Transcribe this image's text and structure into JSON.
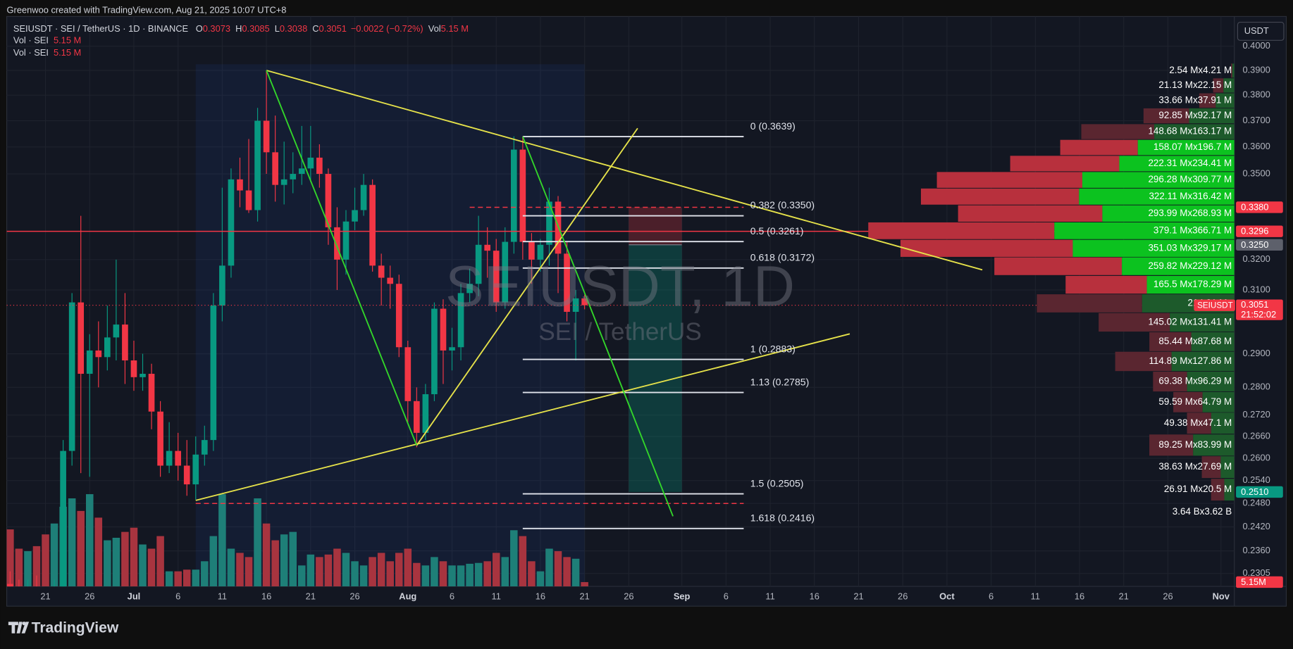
{
  "chart_data": {
    "type": "candlestick",
    "header": "Greenwoo created with TradingView.com, Aug 21, 2025 10:07 UTC+8",
    "legend": {
      "symbol": "SEIUSDT · SEI / TetherUS · 1D · BINANCE",
      "ohlc": [
        {
          "key": "O",
          "value": 0.3073
        },
        {
          "key": "H",
          "value": 0.3085
        },
        {
          "key": "L",
          "value": 0.3038
        },
        {
          "key": "C",
          "value": 0.3051
        }
      ],
      "change": "−0.0022 (−0.72%)",
      "vol_key": "Vol",
      "vol": "5.15 M",
      "indicators": [
        {
          "name": "Vol · SEI",
          "value": "5.15 M"
        },
        {
          "name": "Vol · SEI",
          "value": "5.15 M"
        }
      ]
    },
    "watermark": {
      "title": "SEIUSDT, 1D",
      "subtitle": "SEI / TetherUS"
    },
    "currency": "USDT",
    "footer": "TradingView",
    "log_scale": true,
    "grid": true,
    "colors": {
      "up": "#089981",
      "down": "#f23645",
      "up_volume": "#1e7f78",
      "down_volume": "#a8343f"
    },
    "ylim": [
      0.2274,
      0.4119
    ],
    "yticks": [
      {
        "value": 0.4,
        "label": "0.4000"
      },
      {
        "value": 0.39,
        "label": "0.3900"
      },
      {
        "value": 0.38,
        "label": "0.3800"
      },
      {
        "value": 0.37,
        "label": "0.3700"
      },
      {
        "value": 0.36,
        "label": "0.3600"
      },
      {
        "value": 0.35,
        "label": "0.3500"
      },
      {
        "value": 0.32,
        "label": "0.3200"
      },
      {
        "value": 0.31,
        "label": "0.3100"
      },
      {
        "value": 0.29,
        "label": "0.2900"
      },
      {
        "value": 0.28,
        "label": "0.2800"
      },
      {
        "value": 0.272,
        "label": "0.2720"
      },
      {
        "value": 0.266,
        "label": "0.2660"
      },
      {
        "value": 0.26,
        "label": "0.2600"
      },
      {
        "value": 0.254,
        "label": "0.2540"
      },
      {
        "value": 0.248,
        "label": "0.2480"
      },
      {
        "value": 0.242,
        "label": "0.2420"
      },
      {
        "value": 0.236,
        "label": "0.2360"
      },
      {
        "value": 0.2305,
        "label": "0.2305"
      }
    ],
    "xticks": [
      {
        "value": "Jun 21",
        "label": "21"
      },
      {
        "value": "Jun 26",
        "label": "26"
      },
      {
        "value": "Jul 1",
        "label": "Jul"
      },
      {
        "value": "Jul 6",
        "label": "6"
      },
      {
        "value": "Jul 11",
        "label": "11"
      },
      {
        "value": "Jul 16",
        "label": "16"
      },
      {
        "value": "Jul 21",
        "label": "21"
      },
      {
        "value": "Jul 26",
        "label": "26"
      },
      {
        "value": "Aug 1",
        "label": "Aug"
      },
      {
        "value": "Aug 6",
        "label": "6"
      },
      {
        "value": "Aug 11",
        "label": "11"
      },
      {
        "value": "Aug 16",
        "label": "16"
      },
      {
        "value": "Aug 21",
        "label": "21"
      },
      {
        "value": "Aug 26",
        "label": "26"
      },
      {
        "value": "Sep 1",
        "label": "Sep"
      },
      {
        "value": "Sep 6",
        "label": "6"
      },
      {
        "value": "Sep 11",
        "label": "11"
      },
      {
        "value": "Sep 16",
        "label": "16"
      },
      {
        "value": "Sep 21",
        "label": "21"
      },
      {
        "value": "Sep 26",
        "label": "26"
      },
      {
        "value": "Oct 1",
        "label": "Oct"
      },
      {
        "value": "Oct 6",
        "label": "6"
      },
      {
        "value": "Oct 11",
        "label": "11"
      },
      {
        "value": "Oct 16",
        "label": "16"
      },
      {
        "value": "Oct 21",
        "label": "21"
      },
      {
        "value": "Oct 26",
        "label": "26"
      },
      {
        "value": "Nov 1",
        "label": "Nov"
      }
    ],
    "x": [
      "Jun 17",
      "Jun 18",
      "Jun 19",
      "Jun 20",
      "Jun 21",
      "Jun 22",
      "Jun 23",
      "Jun 24",
      "Jun 25",
      "Jun 26",
      "Jun 27",
      "Jun 28",
      "Jun 29",
      "Jun 30",
      "Jul 1",
      "Jul 2",
      "Jul 3",
      "Jul 4",
      "Jul 5",
      "Jul 6",
      "Jul 7",
      "Jul 8",
      "Jul 9",
      "Jul 10",
      "Jul 11",
      "Jul 12",
      "Jul 13",
      "Jul 14",
      "Jul 15",
      "Jul 16",
      "Jul 17",
      "Jul 18",
      "Jul 19",
      "Jul 20",
      "Jul 21",
      "Jul 22",
      "Jul 23",
      "Jul 24",
      "Jul 25",
      "Jul 26",
      "Jul 27",
      "Jul 28",
      "Jul 29",
      "Jul 30",
      "Jul 31",
      "Aug 1",
      "Aug 2",
      "Aug 3",
      "Aug 4",
      "Aug 5",
      "Aug 6",
      "Aug 7",
      "Aug 8",
      "Aug 9",
      "Aug 10",
      "Aug 11",
      "Aug 12",
      "Aug 13",
      "Aug 14",
      "Aug 15",
      "Aug 16",
      "Aug 17",
      "Aug 18",
      "Aug 19",
      "Aug 20",
      "Aug 21"
    ],
    "open": [
      0.228,
      0.226,
      0.224,
      0.227,
      0.224,
      0.222,
      0.226,
      0.262,
      0.306,
      0.284,
      0.291,
      0.289,
      0.295,
      0.299,
      0.288,
      0.283,
      0.284,
      0.273,
      0.258,
      0.262,
      0.258,
      0.253,
      0.261,
      0.265,
      0.305,
      0.318,
      0.348,
      0.344,
      0.337,
      0.37,
      0.358,
      0.346,
      0.348,
      0.35,
      0.352,
      0.356,
      0.35,
      0.331,
      0.32,
      0.333,
      0.337,
      0.346,
      0.318,
      0.314,
      0.312,
      0.292,
      0.276,
      0.267,
      0.278,
      0.304,
      0.291,
      0.292,
      0.309,
      0.312,
      0.325,
      0.323,
      0.306,
      0.326,
      0.359,
      0.326,
      0.32,
      0.325,
      0.34,
      0.322,
      0.303,
      0.3073
    ],
    "high": [
      0.231,
      0.229,
      0.229,
      0.23,
      0.227,
      0.229,
      0.265,
      0.309,
      0.335,
      0.296,
      0.3,
      0.305,
      0.32,
      0.309,
      0.294,
      0.29,
      0.287,
      0.276,
      0.27,
      0.267,
      0.265,
      0.266,
      0.269,
      0.309,
      0.345,
      0.352,
      0.356,
      0.363,
      0.375,
      0.39,
      0.372,
      0.362,
      0.358,
      0.368,
      0.368,
      0.361,
      0.352,
      0.338,
      0.337,
      0.345,
      0.35,
      0.348,
      0.322,
      0.318,
      0.315,
      0.294,
      0.28,
      0.281,
      0.306,
      0.307,
      0.298,
      0.312,
      0.317,
      0.335,
      0.331,
      0.327,
      0.331,
      0.364,
      0.364,
      0.329,
      0.327,
      0.345,
      0.342,
      0.326,
      0.31,
      0.3085
    ],
    "low": [
      0.224,
      0.221,
      0.222,
      0.221,
      0.219,
      0.218,
      0.224,
      0.258,
      0.256,
      0.255,
      0.28,
      0.285,
      0.288,
      0.281,
      0.279,
      0.279,
      0.268,
      0.255,
      0.256,
      0.254,
      0.25,
      0.249,
      0.258,
      0.262,
      0.3,
      0.314,
      0.338,
      0.336,
      0.333,
      0.35,
      0.34,
      0.339,
      0.343,
      0.346,
      0.347,
      0.345,
      0.325,
      0.31,
      0.315,
      0.33,
      0.335,
      0.316,
      0.305,
      0.304,
      0.289,
      0.27,
      0.263,
      0.265,
      0.276,
      0.281,
      0.285,
      0.288,
      0.306,
      0.308,
      0.314,
      0.303,
      0.304,
      0.322,
      0.32,
      0.312,
      0.316,
      0.318,
      0.309,
      0.3,
      0.288,
      0.3038
    ],
    "close": [
      0.226,
      0.224,
      0.227,
      0.224,
      0.222,
      0.226,
      0.262,
      0.306,
      0.284,
      0.291,
      0.289,
      0.295,
      0.299,
      0.288,
      0.283,
      0.284,
      0.273,
      0.258,
      0.262,
      0.258,
      0.253,
      0.261,
      0.265,
      0.305,
      0.318,
      0.348,
      0.344,
      0.337,
      0.37,
      0.358,
      0.346,
      0.348,
      0.35,
      0.352,
      0.356,
      0.35,
      0.331,
      0.32,
      0.333,
      0.337,
      0.346,
      0.318,
      0.314,
      0.312,
      0.292,
      0.276,
      0.267,
      0.278,
      0.304,
      0.291,
      0.292,
      0.309,
      0.312,
      0.325,
      0.323,
      0.306,
      0.326,
      0.359,
      0.326,
      0.32,
      0.325,
      0.34,
      0.322,
      0.303,
      0.3073,
      0.3051
    ],
    "volume": [
      68,
      45,
      42,
      48,
      62,
      75,
      95,
      105,
      90,
      110,
      82,
      55,
      58,
      65,
      70,
      50,
      45,
      60,
      18,
      18,
      20,
      20,
      30,
      60,
      110,
      45,
      40,
      35,
      105,
      75,
      55,
      62,
      65,
      25,
      38,
      35,
      38,
      45,
      40,
      30,
      25,
      35,
      40,
      30,
      40,
      45,
      28,
      25,
      35,
      30,
      25,
      25,
      27,
      28,
      30,
      40,
      35,
      67,
      60,
      30,
      18,
      45,
      42,
      35,
      33,
      5.15
    ],
    "volume_label": "5.15M",
    "axis_labels": [
      {
        "value": 0.338,
        "label": "0.3380",
        "color": "#f23645"
      },
      {
        "value": 0.3296,
        "label": "0.3296",
        "color": "#f23645"
      },
      {
        "value": 0.325,
        "label": "0.3250",
        "color": "#5d606b"
      },
      {
        "value": 0.251,
        "label": "0.2510",
        "color": "#089981"
      }
    ],
    "last_price": {
      "value": 0.3051,
      "label": "0.3051",
      "symbol": "SEIUSDT",
      "countdown": "21:52:02",
      "color": "#f23645"
    },
    "date_range": {
      "from": "Jul 8",
      "to": "Aug 21",
      "top": 0.3925
    },
    "hlines": [
      {
        "price": 0.3296,
        "color": "#f23645",
        "dash": false
      },
      {
        "price": 0.338,
        "from": "Aug 8",
        "to": "Sep 8",
        "color": "#f23645",
        "dash": true
      },
      {
        "price": 0.248,
        "from": "Jul 8",
        "to": "Sep 8",
        "color": "#f23645",
        "dash": true
      }
    ],
    "position": {
      "from": "Aug 26",
      "to": "Sep 1",
      "entry": 0.325,
      "stop": 0.338,
      "target": 0.251
    },
    "fib": {
      "from": "Aug 14",
      "to": "Sep 8",
      "color": "#e0e3eb",
      "levels": [
        {
          "ratio": 0,
          "price": 0.3639,
          "label": "0 (0.3639)"
        },
        {
          "ratio": 0.382,
          "price": 0.335,
          "label": "0.382 (0.3350)"
        },
        {
          "ratio": 0.5,
          "price": 0.3261,
          "label": "0.5 (0.3261)"
        },
        {
          "ratio": 0.618,
          "price": 0.3172,
          "label": "0.618 (0.3172)"
        },
        {
          "ratio": 1,
          "price": 0.2883,
          "label": "1 (0.2883)"
        },
        {
          "ratio": 1.13,
          "price": 0.2785,
          "label": "1.13 (0.2785)"
        },
        {
          "ratio": 1.5,
          "price": 0.2505,
          "label": "1.5 (0.2505)"
        },
        {
          "ratio": 1.618,
          "price": 0.2416,
          "label": "1.618 (0.2416)"
        }
      ]
    },
    "trendlines": [
      {
        "color": "#e6e24a",
        "points": [
          {
            "date": "Jul 16",
            "price": 0.39
          },
          {
            "date": "Oct 5",
            "price": 0.3166
          }
        ]
      },
      {
        "color": "#e6e24a",
        "points": [
          {
            "date": "Jul 8",
            "price": 0.2488
          },
          {
            "date": "Sep 20",
            "price": 0.2961
          }
        ]
      },
      {
        "color": "#e6e24a",
        "points": [
          {
            "date": "Aug 2",
            "price": 0.2635
          },
          {
            "date": "Aug 27",
            "price": 0.3671
          }
        ]
      },
      {
        "color": "#33d62a",
        "points": [
          {
            "date": "Jul 16",
            "price": 0.39
          },
          {
            "date": "Aug 2",
            "price": 0.2635
          }
        ]
      },
      {
        "color": "#33d62a",
        "points": [
          {
            "date": "Aug 14",
            "price": 0.3639
          },
          {
            "date": "Aug 31",
            "price": 0.2447
          }
        ]
      }
    ],
    "profile": {
      "colors": {
        "sell": "#b8303d",
        "buy": "#0cc21f",
        "sell_dim": "#5a2630",
        "buy_dim": "#1d5a2b"
      },
      "value_area": [
        0.3117,
        0.3598
      ],
      "rows": [
        {
          "price": 0.3899,
          "sell": 2.54,
          "buy": 4.21,
          "label": "2.54 Mx4.21 M"
        },
        {
          "price": 0.3839,
          "sell": 21.13,
          "buy": 22.15,
          "label": "21.13 Mx22.15 M"
        },
        {
          "price": 0.3779,
          "sell": 33.66,
          "buy": 37.91,
          "label": "33.66 Mx37.91 M"
        },
        {
          "price": 0.3719,
          "sell": 92.85,
          "buy": 92.17,
          "label": "92.85 Mx92.17 M"
        },
        {
          "price": 0.3658,
          "sell": 148.68,
          "buy": 163.17,
          "label": "148.68 Mx163.17 M"
        },
        {
          "price": 0.3598,
          "sell": 158.07,
          "buy": 196.7,
          "label": "158.07 Mx196.7 M"
        },
        {
          "price": 0.3538,
          "sell": 222.31,
          "buy": 234.41,
          "label": "222.31 Mx234.41 M"
        },
        {
          "price": 0.3478,
          "sell": 296.28,
          "buy": 309.77,
          "label": "296.28 Mx309.77 M"
        },
        {
          "price": 0.3418,
          "sell": 322.11,
          "buy": 316.42,
          "label": "322.11 Mx316.42 M"
        },
        {
          "price": 0.3358,
          "sell": 293.99,
          "buy": 268.93,
          "label": "293.99 Mx268.93 M"
        },
        {
          "price": 0.3298,
          "sell": 379.1,
          "buy": 366.71,
          "label": "379.1 Mx366.71 M"
        },
        {
          "price": 0.3238,
          "sell": 351.03,
          "buy": 329.17,
          "label": "351.03 Mx329.17 M"
        },
        {
          "price": 0.3178,
          "sell": 259.82,
          "buy": 229.12,
          "label": "259.82 Mx229.12 M"
        },
        {
          "price": 0.3117,
          "sell": 165.5,
          "buy": 178.29,
          "label": "165.5 Mx178.29 M"
        },
        {
          "price": 0.3057,
          "sell": 214.31,
          "buy": 188,
          "label": "214.31 Mx"
        },
        {
          "price": 0.2997,
          "sell": 145.02,
          "buy": 131.41,
          "label": "145.02 Mx131.41 M"
        },
        {
          "price": 0.2937,
          "sell": 85.44,
          "buy": 87.68,
          "label": "85.44 Mx87.68 M"
        },
        {
          "price": 0.2877,
          "sell": 114.89,
          "buy": 127.86,
          "label": "114.89 Mx127.86 M"
        },
        {
          "price": 0.2817,
          "sell": 69.38,
          "buy": 96.29,
          "label": "69.38 Mx96.29 M"
        },
        {
          "price": 0.2757,
          "sell": 59.59,
          "buy": 64.79,
          "label": "59.59 Mx64.79 M"
        },
        {
          "price": 0.2697,
          "sell": 49.38,
          "buy": 47.1,
          "label": "49.38 Mx47.1 M"
        },
        {
          "price": 0.2636,
          "sell": 89.25,
          "buy": 83.99,
          "label": "89.25 Mx83.99 M"
        },
        {
          "price": 0.2576,
          "sell": 38.63,
          "buy": 27.69,
          "label": "38.63 Mx27.69 M"
        },
        {
          "price": 0.2516,
          "sell": 26.91,
          "buy": 20.5,
          "label": "26.91 Mx20.5 M"
        }
      ],
      "total": "3.64 Bx3.62 B"
    }
  }
}
